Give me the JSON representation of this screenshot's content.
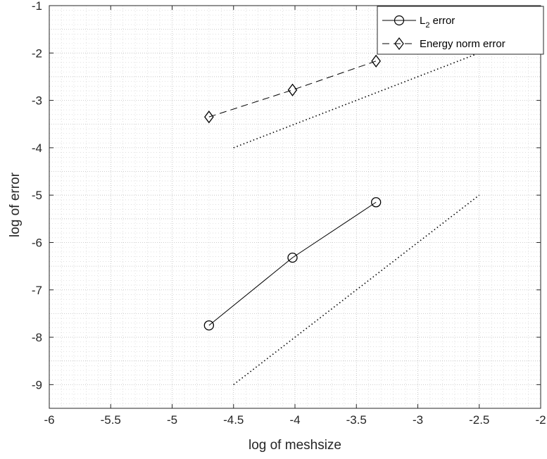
{
  "chart_data": {
    "type": "line",
    "xlabel": "log of meshsize",
    "ylabel": "log of error",
    "xlim": [
      -6,
      -2
    ],
    "ylim": [
      -9.5,
      -1
    ],
    "xticks": [
      -6,
      -5.5,
      -5,
      -4.5,
      -4,
      -3.5,
      -3,
      -2.5,
      -2
    ],
    "yticks": [
      -9,
      -8,
      -7,
      -6,
      -5,
      -4,
      -3,
      -2,
      -1
    ],
    "x_tick_labels": [
      "-6",
      "-5.5",
      "-5",
      "-4.5",
      "-4",
      "-3.5",
      "-3",
      "-2.5",
      "-2"
    ],
    "y_tick_labels": [
      "-9",
      "-8",
      "-7",
      "-6",
      "-5",
      "-4",
      "-3",
      "-2",
      "-1"
    ],
    "grid": true,
    "minor_grid": true,
    "legend_position": "top-right",
    "series": [
      {
        "name": "L_2 error",
        "legend_main": "L",
        "legend_sub": "2",
        "legend_rest": " error",
        "x": [
          -4.7,
          -4.02,
          -3.34
        ],
        "y": [
          -7.75,
          -6.32,
          -5.15
        ],
        "marker": "circle",
        "line_style": "solid",
        "color": "#000000"
      },
      {
        "name": "Energy norm error",
        "legend_main": "Energy norm error",
        "x": [
          -4.7,
          -4.02,
          -3.34
        ],
        "y": [
          -3.35,
          -2.78,
          -2.17
        ],
        "marker": "diamond",
        "line_style": "dashed",
        "color": "#000000"
      }
    ],
    "reference_lines": [
      {
        "x": [
          -4.5,
          -2.5
        ],
        "y": [
          -4,
          -2
        ],
        "line_style": "dotted"
      },
      {
        "x": [
          -4.5,
          -2.5
        ],
        "y": [
          -9,
          -5
        ],
        "line_style": "dotted"
      }
    ]
  }
}
